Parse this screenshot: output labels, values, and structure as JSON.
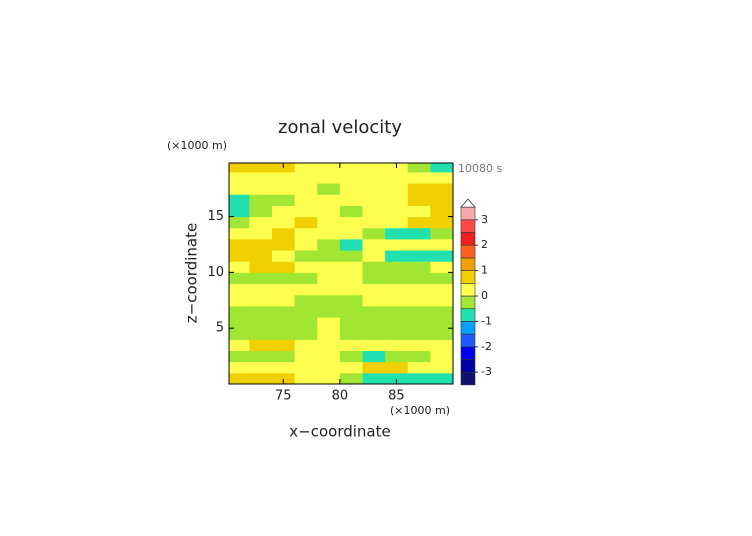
{
  "chart_data": {
    "type": "contour",
    "title": "zonal velocity",
    "x_label": "x−coordinate",
    "y_label": "z−coordinate",
    "x_unit": "(×1000 m)",
    "y_unit": "(×1000 m)",
    "time_label": "10080 s",
    "xlim": [
      70.2,
      90
    ],
    "ylim": [
      0,
      19.8
    ],
    "xticks": [
      75,
      80,
      85
    ],
    "yticks": [
      5,
      10,
      15
    ],
    "x": [
      71,
      73,
      75,
      77,
      79,
      81,
      83,
      85,
      87,
      89
    ],
    "y": [
      0.5,
      1.5,
      2.5,
      3.5,
      4.5,
      5.5,
      6.5,
      7.5,
      8.5,
      9.5,
      10.5,
      11.5,
      12.5,
      13.5,
      14.5,
      15.5,
      16.5,
      17.5,
      18.5,
      19.5
    ],
    "z": [
      [
        0.7,
        0.6,
        0.5,
        0.4,
        0.3,
        -0.2,
        -0.6,
        -0.6,
        -0.7,
        -0.6
      ],
      [
        0.3,
        0.3,
        0.3,
        0.3,
        0.2,
        0.2,
        0.6,
        0.6,
        0.4,
        0.3
      ],
      [
        -0.2,
        -0.1,
        -0.2,
        0.2,
        0.2,
        -0.3,
        -0.6,
        -0.3,
        -0.2,
        0.2
      ],
      [
        0.3,
        0.6,
        0.6,
        0.3,
        0.2,
        0.3,
        0.2,
        0.3,
        0.3,
        0.2
      ],
      [
        -0.2,
        -0.2,
        -0.3,
        -0.2,
        0.2,
        -0.2,
        -0.3,
        -0.2,
        -0.2,
        -0.2
      ],
      [
        -0.2,
        -0.2,
        -0.2,
        -0.2,
        0.2,
        -0.2,
        -0.2,
        -0.2,
        -0.2,
        -0.2
      ],
      [
        -0.2,
        -0.2,
        -0.2,
        -0.2,
        -0.2,
        -0.2,
        -0.2,
        -0.2,
        -0.2,
        -0.2
      ],
      [
        0.2,
        0.2,
        0.2,
        -0.2,
        -0.2,
        -0.2,
        0.2,
        0.2,
        0.2,
        0.2
      ],
      [
        0.2,
        0.2,
        0.2,
        0.2,
        0.2,
        0.2,
        0.2,
        0.2,
        0.2,
        0.2
      ],
      [
        -0.2,
        -0.2,
        -0.2,
        -0.2,
        0.2,
        0.2,
        -0.2,
        -0.2,
        -0.2,
        -0.2
      ],
      [
        0.3,
        0.6,
        0.6,
        0.3,
        0.2,
        0.3,
        -0.3,
        -0.3,
        -0.2,
        0.2
      ],
      [
        0.6,
        0.6,
        0.3,
        -0.2,
        -0.3,
        -0.2,
        0.2,
        -0.6,
        -0.7,
        -0.6
      ],
      [
        0.7,
        0.8,
        0.6,
        0.3,
        -0.2,
        -0.6,
        0.3,
        0.3,
        0.2,
        0.2
      ],
      [
        0.2,
        0.3,
        0.6,
        0.3,
        0.2,
        0.2,
        -0.2,
        -0.6,
        -0.6,
        -0.3
      ],
      [
        -0.2,
        0.2,
        0.3,
        0.6,
        0.2,
        0.2,
        0.3,
        0.3,
        0.6,
        0.6
      ],
      [
        -0.6,
        -0.3,
        0.2,
        0.2,
        0.2,
        -0.2,
        0.2,
        0.3,
        0.3,
        0.6
      ],
      [
        -0.7,
        -0.3,
        -0.2,
        0.2,
        0.2,
        0.2,
        0.2,
        0.3,
        0.6,
        0.8
      ],
      [
        0.2,
        0.3,
        0.2,
        0.2,
        -0.2,
        0.2,
        0.2,
        0.2,
        0.6,
        0.7
      ],
      [
        0.3,
        0.2,
        0.2,
        0.2,
        0.2,
        0.2,
        0.2,
        0.2,
        0.3,
        0.3
      ],
      [
        0.6,
        0.6,
        0.6,
        0.3,
        0.2,
        0.2,
        0.2,
        0.3,
        -0.3,
        -0.6
      ]
    ],
    "levels": [
      -3.5,
      -3,
      -2.5,
      -2,
      -1.5,
      -1,
      -0.5,
      0,
      0.5,
      1,
      1.5,
      2,
      2.5,
      3,
      3.5
    ],
    "colors": [
      "#10106e",
      "#0000a0",
      "#0000f0",
      "#1e5aff",
      "#00a0ff",
      "#20e0b0",
      "#a0e632",
      "#ffff50",
      "#f0d000",
      "#f0a000",
      "#ff6020",
      "#f01e1e",
      "#ff4848",
      "#f4a8a8"
    ],
    "colorbar_ticks": [
      -3,
      -2,
      -1,
      0,
      1,
      2,
      3
    ]
  }
}
